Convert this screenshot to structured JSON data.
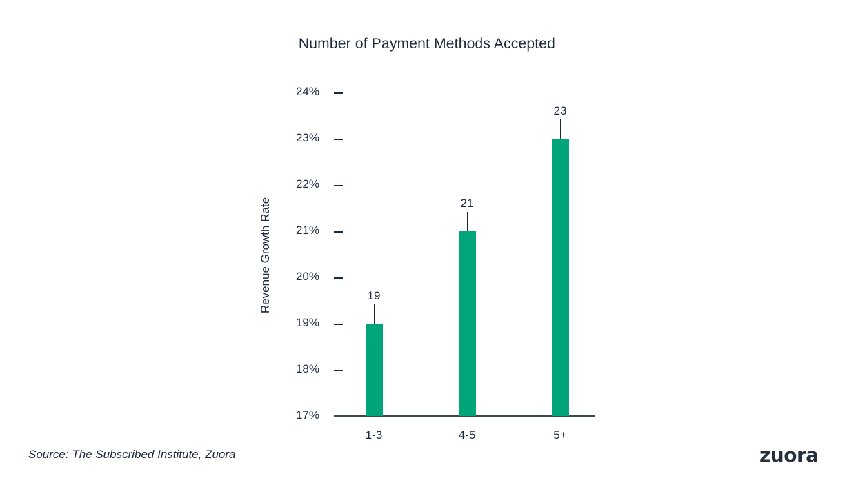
{
  "chart_data": {
    "type": "bar",
    "title": "Number of Payment Methods Accepted",
    "xlabel": "",
    "ylabel": "Revenue Growth Rate",
    "categories": [
      "1-3",
      "4-5",
      "5+"
    ],
    "values": [
      19,
      21,
      23
    ],
    "value_labels": [
      "19",
      "21",
      "23"
    ],
    "unit": "%",
    "ylim": [
      17,
      24
    ],
    "yticks": [
      "24%",
      "23%",
      "22%",
      "21%",
      "20%",
      "19%",
      "18%",
      "17%"
    ],
    "grid": false,
    "legend": null,
    "bar_color": "#00a57a"
  },
  "footer": {
    "source": "Source:  The Subscribed Institute, Zuora",
    "logo": "zuora"
  }
}
